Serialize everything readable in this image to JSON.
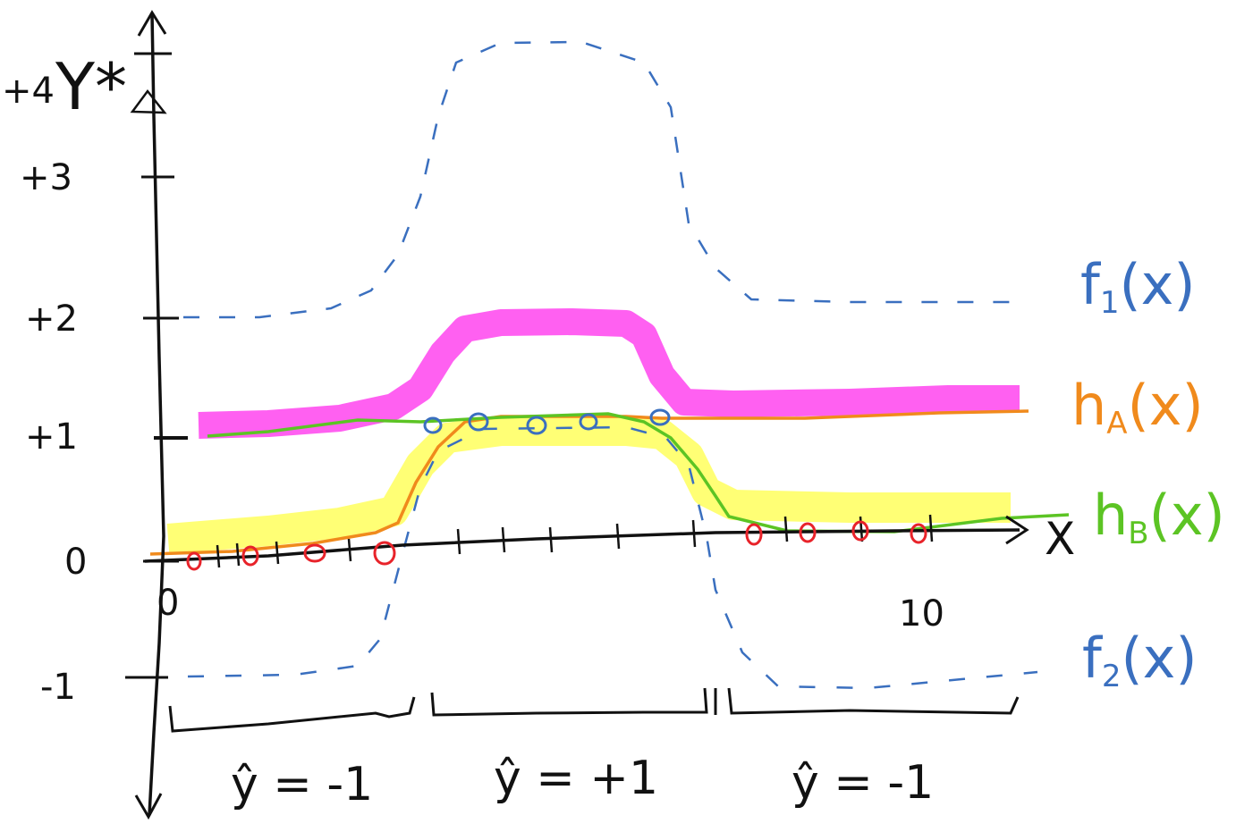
{
  "axes": {
    "y_label": "Y*",
    "x_label": "X",
    "x_ticks": [
      "0",
      "10"
    ],
    "y_ticks": [
      {
        "value": 4,
        "label": "+4"
      },
      {
        "value": 3,
        "label": "+3"
      },
      {
        "value": 2,
        "label": "+2"
      },
      {
        "value": 1,
        "label": "+1"
      },
      {
        "value": 0,
        "label": "0"
      },
      {
        "value": -1,
        "label": "-1"
      }
    ]
  },
  "curves": {
    "f1": {
      "label": "f",
      "sub": "1",
      "tail": "(x)",
      "color": "#3a6fbf"
    },
    "f2": {
      "label": "f",
      "sub": "2",
      "tail": "(x)",
      "color": "#3a6fbf"
    },
    "hA": {
      "label": "h",
      "sub": "A",
      "tail": "(x)",
      "color": "#f08a1c"
    },
    "hB": {
      "label": "h",
      "sub": "B",
      "tail": "(x)",
      "color": "#5cc424"
    }
  },
  "highlights": {
    "magenta": "#ff44ee",
    "yellow": "#ffff66"
  },
  "points": {
    "red_color": "#e8232a",
    "blue_color": "#3a6fbf"
  },
  "regions": [
    {
      "label": "ŷ = -1"
    },
    {
      "label": "ŷ = +1"
    },
    {
      "label": "ŷ = -1"
    }
  ]
}
